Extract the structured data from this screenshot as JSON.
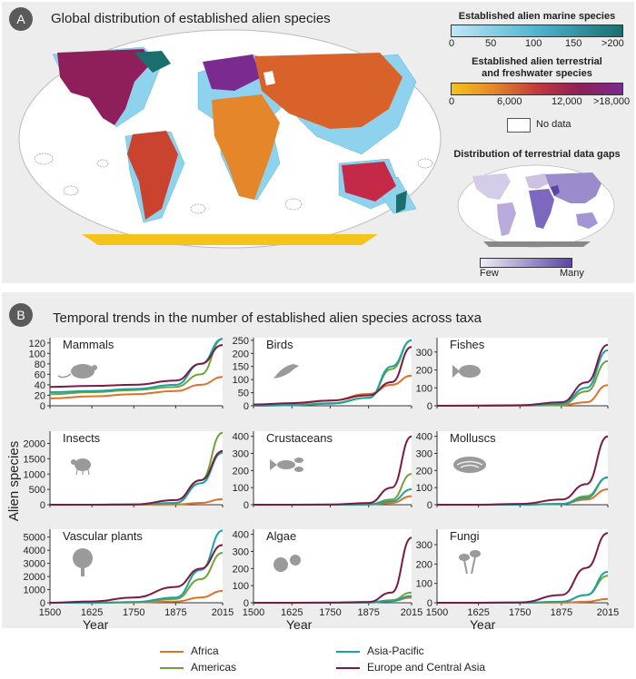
{
  "panel_a": {
    "badge": "A",
    "title": "Global distribution of established alien species",
    "marine_legend": {
      "title": "Established alien marine species",
      "ticks": [
        "0",
        "50",
        "100",
        "150",
        ">200"
      ],
      "color_start": "#bfe6f5",
      "color_end": "#1a6e6e"
    },
    "terrestrial_legend": {
      "title_line1": "Established alien terrestrial",
      "title_line2": "and freshwater species",
      "ticks": [
        "0",
        "6,000",
        "12,000",
        ">18,000"
      ],
      "colors": [
        "#f6c31a",
        "#e5862a",
        "#c13a3a",
        "#8f1f5a",
        "#7b2b8f"
      ]
    },
    "no_data_label": "No data",
    "gaps": {
      "title": "Distribution of terrestrial data gaps",
      "low_label": "Few",
      "high_label": "Many"
    }
  },
  "panel_b": {
    "badge": "B",
    "title": "Temporal trends in the number of established alien species across taxa",
    "y_axis_label": "Alien species",
    "x_axis_label": "Year"
  },
  "series_colors": {
    "Africa": "#e0702a",
    "Americas": "#6fa33a",
    "Asia-Pacific": "#1aa3a0",
    "Europe and Central Asia": "#7d1a44"
  },
  "legend": [
    "Africa",
    "Americas",
    "Asia-Pacific",
    "Europe and Central Asia"
  ],
  "chart_data": [
    {
      "type": "line",
      "title": "Mammals",
      "icon": "mouse-icon",
      "x": [
        1500,
        1625,
        1750,
        1875,
        1950,
        2015
      ],
      "xlim": [
        1500,
        2015
      ],
      "ylim": [
        0,
        130
      ],
      "yticks": [
        0,
        20,
        40,
        60,
        80,
        100,
        120
      ],
      "xticks": [
        1500,
        1625,
        1750,
        1875,
        2015
      ],
      "xlabel": "",
      "series": [
        {
          "name": "Africa",
          "values": [
            14,
            18,
            22,
            28,
            40,
            55
          ]
        },
        {
          "name": "Americas",
          "values": [
            22,
            26,
            30,
            36,
            60,
            128
          ]
        },
        {
          "name": "Asia-Pacific",
          "values": [
            26,
            28,
            32,
            40,
            80,
            128
          ]
        },
        {
          "name": "Europe and Central Asia",
          "values": [
            36,
            38,
            40,
            48,
            80,
            116
          ]
        }
      ]
    },
    {
      "type": "line",
      "title": "Birds",
      "icon": "bird-icon",
      "x": [
        1500,
        1625,
        1750,
        1875,
        1950,
        2015
      ],
      "xlim": [
        1500,
        2015
      ],
      "ylim": [
        0,
        260
      ],
      "yticks": [
        0,
        50,
        100,
        150,
        200,
        250
      ],
      "xticks": [
        1500,
        1625,
        1750,
        1875,
        2015
      ],
      "xlabel": "",
      "series": [
        {
          "name": "Africa",
          "values": [
            2,
            8,
            20,
            45,
            80,
            115
          ]
        },
        {
          "name": "Americas",
          "values": [
            0,
            2,
            10,
            30,
            140,
            250
          ]
        },
        {
          "name": "Asia-Pacific",
          "values": [
            0,
            2,
            8,
            30,
            150,
            250
          ]
        },
        {
          "name": "Europe and Central Asia",
          "values": [
            5,
            10,
            20,
            40,
            90,
            225
          ]
        }
      ]
    },
    {
      "type": "line",
      "title": "Fishes",
      "icon": "fish-icon",
      "x": [
        1500,
        1625,
        1750,
        1875,
        1950,
        2015
      ],
      "xlim": [
        1500,
        2015
      ],
      "ylim": [
        0,
        380
      ],
      "yticks": [
        0,
        100,
        200,
        300
      ],
      "xticks": [
        1500,
        1625,
        1750,
        1875,
        2015
      ],
      "xlabel": "",
      "series": [
        {
          "name": "Africa",
          "values": [
            0,
            0,
            1,
            3,
            20,
            115
          ]
        },
        {
          "name": "Americas",
          "values": [
            0,
            0,
            1,
            5,
            80,
            250
          ]
        },
        {
          "name": "Asia-Pacific",
          "values": [
            0,
            0,
            2,
            10,
            100,
            310
          ]
        },
        {
          "name": "Europe and Central Asia",
          "values": [
            0,
            1,
            3,
            20,
            130,
            340
          ]
        }
      ]
    },
    {
      "type": "line",
      "title": "Insects",
      "icon": "insect-icon",
      "x": [
        1500,
        1625,
        1750,
        1875,
        1950,
        2015
      ],
      "xlim": [
        1500,
        2015
      ],
      "ylim": [
        0,
        2400
      ],
      "yticks": [
        0,
        500,
        1000,
        1500,
        2000
      ],
      "xticks": [
        1500,
        1625,
        1750,
        1875,
        2015
      ],
      "xlabel": "",
      "series": [
        {
          "name": "Africa",
          "values": [
            0,
            0,
            0,
            10,
            60,
            180
          ]
        },
        {
          "name": "Americas",
          "values": [
            0,
            0,
            5,
            50,
            800,
            2350
          ]
        },
        {
          "name": "Asia-Pacific",
          "values": [
            0,
            0,
            5,
            60,
            700,
            1700
          ]
        },
        {
          "name": "Europe and Central Asia",
          "values": [
            0,
            0,
            10,
            150,
            800,
            1750
          ]
        }
      ]
    },
    {
      "type": "line",
      "title": "Crustaceans",
      "icon": "crustacean-icon",
      "x": [
        1500,
        1625,
        1750,
        1875,
        1950,
        2015
      ],
      "xlim": [
        1500,
        2015
      ],
      "ylim": [
        0,
        430
      ],
      "yticks": [
        0,
        100,
        200,
        300,
        400
      ],
      "xticks": [
        1500,
        1625,
        1750,
        1875,
        2015
      ],
      "xlabel": "",
      "series": [
        {
          "name": "Africa",
          "values": [
            0,
            0,
            0,
            1,
            10,
            50
          ]
        },
        {
          "name": "Americas",
          "values": [
            0,
            0,
            0,
            2,
            30,
            180
          ]
        },
        {
          "name": "Asia-Pacific",
          "values": [
            0,
            0,
            0,
            1,
            20,
            90
          ]
        },
        {
          "name": "Europe and Central Asia",
          "values": [
            0,
            0,
            1,
            10,
            100,
            400
          ]
        }
      ]
    },
    {
      "type": "line",
      "title": "Molluscs",
      "icon": "mollusc-icon",
      "x": [
        1500,
        1625,
        1750,
        1875,
        1950,
        2015
      ],
      "xlim": [
        1500,
        2015
      ],
      "ylim": [
        0,
        430
      ],
      "yticks": [
        0,
        100,
        200,
        300,
        400
      ],
      "xticks": [
        1500,
        1625,
        1750,
        1875,
        2015
      ],
      "xlabel": "",
      "series": [
        {
          "name": "Africa",
          "values": [
            0,
            0,
            0,
            5,
            30,
            90
          ]
        },
        {
          "name": "Americas",
          "values": [
            0,
            0,
            0,
            5,
            50,
            160
          ]
        },
        {
          "name": "Asia-Pacific",
          "values": [
            0,
            0,
            0,
            5,
            40,
            160
          ]
        },
        {
          "name": "Europe and Central Asia",
          "values": [
            0,
            0,
            5,
            30,
            120,
            400
          ]
        }
      ]
    },
    {
      "type": "line",
      "title": "Vascular plants",
      "icon": "tree-icon",
      "x": [
        1500,
        1625,
        1750,
        1875,
        1950,
        2015
      ],
      "xlim": [
        1500,
        2015
      ],
      "ylim": [
        0,
        5600
      ],
      "yticks": [
        0,
        1000,
        2000,
        3000,
        4000,
        5000
      ],
      "xticks": [
        1500,
        1625,
        1750,
        1875,
        2015
      ],
      "xlabel": "Year",
      "series": [
        {
          "name": "Africa",
          "values": [
            0,
            0,
            20,
            100,
            400,
            900
          ]
        },
        {
          "name": "Americas",
          "values": [
            0,
            0,
            50,
            300,
            1800,
            3800
          ]
        },
        {
          "name": "Asia-Pacific",
          "values": [
            0,
            0,
            50,
            400,
            2500,
            5500
          ]
        },
        {
          "name": "Europe and Central Asia",
          "values": [
            0,
            100,
            400,
            1200,
            2600,
            4400
          ]
        }
      ]
    },
    {
      "type": "line",
      "title": "Algae",
      "icon": "algae-icon",
      "x": [
        1500,
        1625,
        1750,
        1875,
        1950,
        2015
      ],
      "xlim": [
        1500,
        2015
      ],
      "ylim": [
        0,
        430
      ],
      "yticks": [
        0,
        100,
        200,
        300,
        400
      ],
      "xticks": [
        1500,
        1625,
        1750,
        1875,
        2015
      ],
      "xlabel": "Year",
      "series": [
        {
          "name": "Africa",
          "values": [
            0,
            0,
            0,
            1,
            10,
            30
          ]
        },
        {
          "name": "Americas",
          "values": [
            0,
            0,
            0,
            2,
            15,
            60
          ]
        },
        {
          "name": "Asia-Pacific",
          "values": [
            0,
            0,
            0,
            1,
            10,
            40
          ]
        },
        {
          "name": "Europe and Central Asia",
          "values": [
            0,
            0,
            1,
            5,
            60,
            380
          ]
        }
      ]
    },
    {
      "type": "line",
      "title": "Fungi",
      "icon": "fungi-icon",
      "x": [
        1500,
        1625,
        1750,
        1875,
        1950,
        2015
      ],
      "xlim": [
        1500,
        2015
      ],
      "ylim": [
        0,
        380
      ],
      "yticks": [
        0,
        100,
        200,
        300
      ],
      "xticks": [
        1500,
        1625,
        1750,
        1875,
        2015
      ],
      "xlabel": "Year",
      "series": [
        {
          "name": "Africa",
          "values": [
            0,
            0,
            0,
            1,
            5,
            20
          ]
        },
        {
          "name": "Americas",
          "values": [
            0,
            0,
            0,
            5,
            40,
            140
          ]
        },
        {
          "name": "Asia-Pacific",
          "values": [
            0,
            0,
            0,
            5,
            40,
            160
          ]
        },
        {
          "name": "Europe and Central Asia",
          "values": [
            0,
            0,
            2,
            40,
            180,
            360
          ]
        }
      ]
    }
  ]
}
